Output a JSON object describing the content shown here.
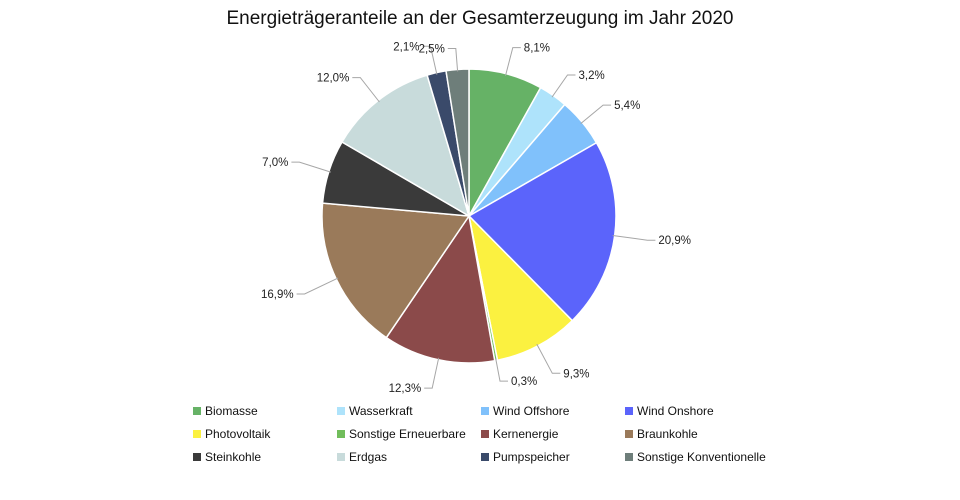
{
  "chart_data": {
    "type": "pie",
    "title": "Energieträgeranteile an der Gesamterzeugung im Jahr 2020",
    "legend_position": "bottom",
    "slices": [
      {
        "label": "Biomasse",
        "value": 8.1,
        "display": "8,1%",
        "color": "#66b266"
      },
      {
        "label": "Wasserkraft",
        "value": 3.2,
        "display": "3,2%",
        "color": "#aee3fb"
      },
      {
        "label": "Wind Offshore",
        "value": 5.4,
        "display": "5,4%",
        "color": "#80c1fb"
      },
      {
        "label": "Wind Onshore",
        "value": 20.9,
        "display": "20,9%",
        "color": "#5b64fb"
      },
      {
        "label": "Photovoltaik",
        "value": 9.3,
        "display": "9,3%",
        "color": "#fbf140"
      },
      {
        "label": "Sonstige Erneuerbare",
        "value": 0.3,
        "display": "0,3%",
        "color": "#71bd5b"
      },
      {
        "label": "Kernenergie",
        "value": 12.3,
        "display": "12,3%",
        "color": "#8b4a4a"
      },
      {
        "label": "Braunkohle",
        "value": 16.9,
        "display": "16,9%",
        "color": "#9a7a5a"
      },
      {
        "label": "Steinkohle",
        "value": 7.0,
        "display": "7,0%",
        "color": "#3a3a3a"
      },
      {
        "label": "Erdgas",
        "value": 12.0,
        "display": "12,0%",
        "color": "#c8dbdb"
      },
      {
        "label": "Pumpspeicher",
        "value": 2.1,
        "display": "2,1%",
        "color": "#3a4a6a"
      },
      {
        "label": "Sonstige Konventionelle",
        "value": 2.5,
        "display": "2,5%",
        "color": "#6e7e7a"
      }
    ]
  }
}
